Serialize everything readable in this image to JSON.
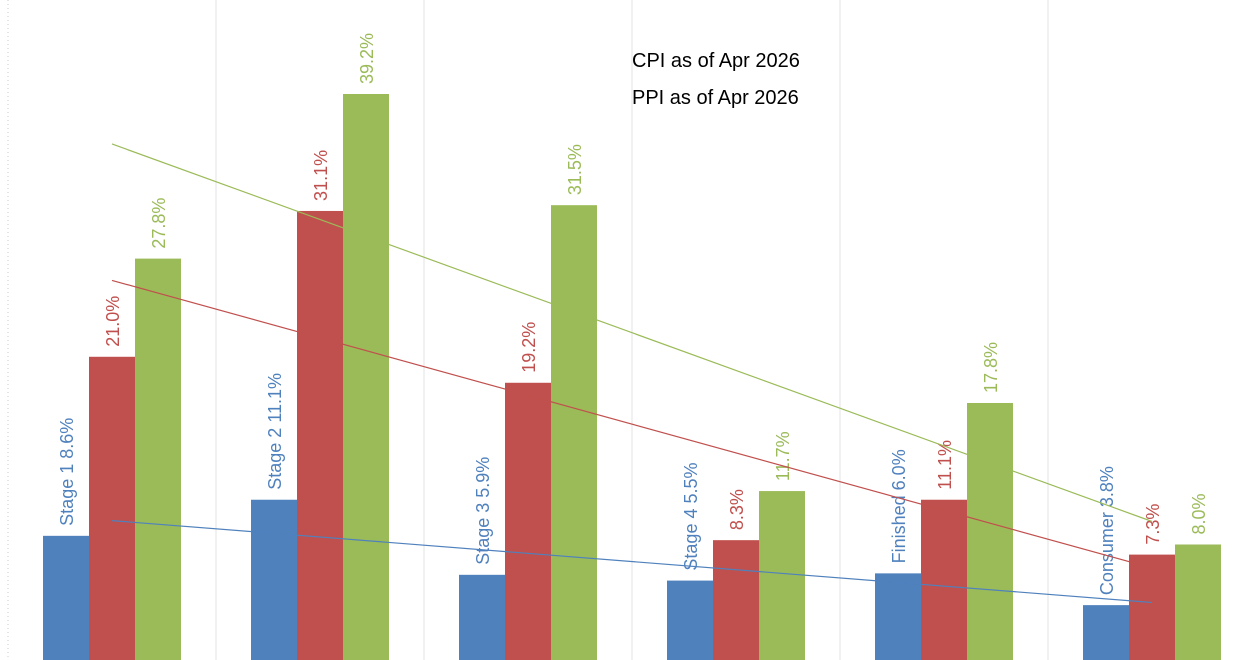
{
  "chart_data": {
    "type": "bar",
    "annotations": [
      "CPI as of Apr 2026",
      "PPI as of Apr 2026"
    ],
    "trendline": true,
    "series": [
      {
        "color": "#4f81bd",
        "values": [
          8.6,
          11.1,
          5.9,
          5.5,
          6.0,
          3.8
        ],
        "value_labels": [
          "Stage 1 8.6%",
          "Stage 2 11.1%",
          "Stage 3 5.9%",
          "Stage 4 5.5%",
          "Finished 6.0%",
          "Consumer 3.8%"
        ]
      },
      {
        "color": "#c0504d",
        "values": [
          21.0,
          31.1,
          19.2,
          8.3,
          11.1,
          7.3
        ],
        "value_labels": [
          "21.0%",
          "31.1%",
          "19.2%",
          "8.3%",
          "11.1%",
          "7.3%"
        ]
      },
      {
        "color": "#9bbb59",
        "values": [
          27.8,
          39.2,
          31.5,
          11.7,
          17.8,
          8.0
        ],
        "value_labels": [
          "27.8%",
          "39.2%",
          "31.5%",
          "11.7%",
          "17.8%",
          "8.0%"
        ]
      }
    ]
  }
}
